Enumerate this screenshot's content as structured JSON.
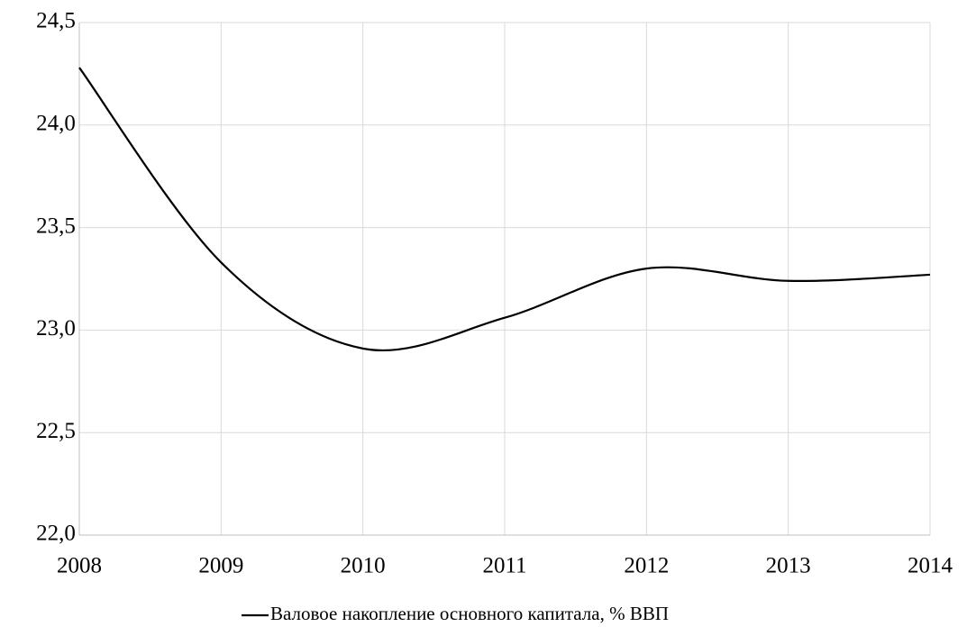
{
  "chart_data": {
    "type": "line",
    "x": [
      2008,
      2009,
      2010,
      2011,
      2012,
      2013,
      2014
    ],
    "xlim": [
      2008,
      2014
    ],
    "series": [
      {
        "name": "Валовое накопление основного капитала, % ВВП",
        "color": "#000000",
        "values": [
          24.28,
          23.33,
          22.91,
          23.06,
          23.3,
          23.24,
          23.27
        ]
      }
    ],
    "ylim": [
      22.0,
      24.5
    ],
    "yticks": [
      {
        "value": 22.0,
        "label": "22,0"
      },
      {
        "value": 22.5,
        "label": "22,5"
      },
      {
        "value": 23.0,
        "label": "23,0"
      },
      {
        "value": 23.5,
        "label": "23,5"
      },
      {
        "value": 24.0,
        "label": "24,0"
      },
      {
        "value": 24.5,
        "label": "24,5"
      }
    ],
    "grid": true,
    "legend": "bottom",
    "smooth": true
  }
}
